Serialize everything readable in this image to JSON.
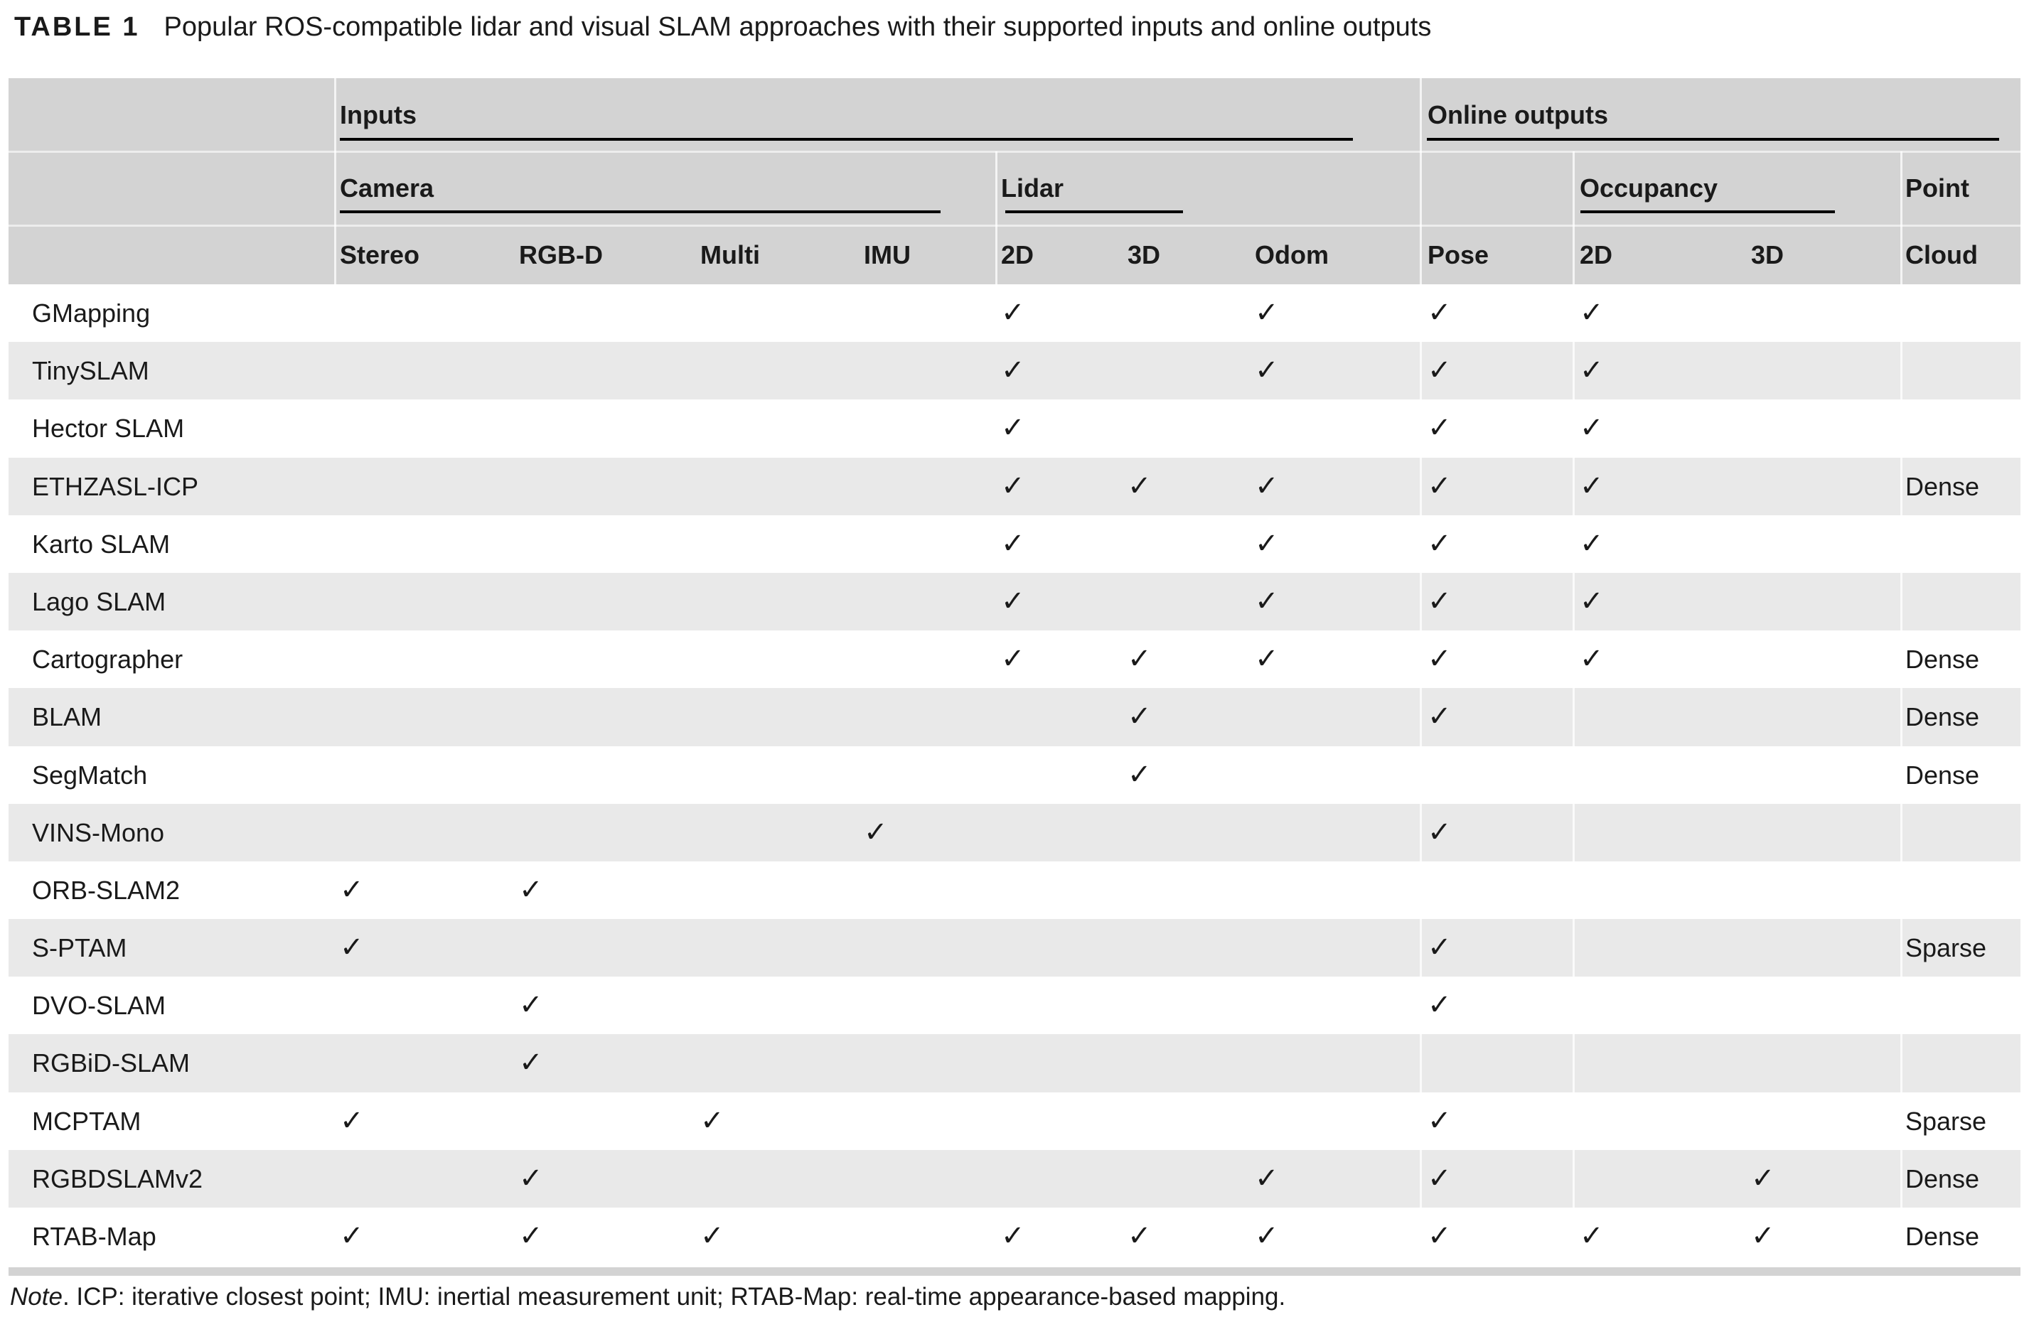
{
  "title": {
    "label": "TABLE 1",
    "text": "Popular ROS-compatible lidar and visual SLAM approaches with their supported inputs and online outputs"
  },
  "theme": {
    "header_bg": "#d3d3d3",
    "stripe_bg": "#e9e9e9",
    "text_color": "#1a1a1a",
    "rule_color": "#000000"
  },
  "check_glyph": "✓",
  "header": {
    "groups": {
      "inputs": "Inputs",
      "online_outputs": "Online outputs",
      "camera": "Camera",
      "lidar": "Lidar",
      "occupancy": "Occupancy",
      "point": "Point"
    },
    "columns": {
      "stereo": "Stereo",
      "rgbd": "RGB-D",
      "multi": "Multi",
      "imu": "IMU",
      "l2d": "2D",
      "l3d": "3D",
      "odom": "Odom",
      "pose": "Pose",
      "o2d": "2D",
      "o3d": "3D",
      "cloud": "Cloud"
    }
  },
  "rows": [
    {
      "name": "GMapping",
      "checks": [
        "l2d",
        "odom",
        "pose",
        "o2d"
      ],
      "cloud": ""
    },
    {
      "name": "TinySLAM",
      "checks": [
        "l2d",
        "odom",
        "pose",
        "o2d"
      ],
      "cloud": ""
    },
    {
      "name": "Hector SLAM",
      "checks": [
        "l2d",
        "pose",
        "o2d"
      ],
      "cloud": ""
    },
    {
      "name": "ETHZASL-ICP",
      "checks": [
        "l2d",
        "l3d",
        "odom",
        "pose",
        "o2d"
      ],
      "cloud": "Dense"
    },
    {
      "name": "Karto SLAM",
      "checks": [
        "l2d",
        "odom",
        "pose",
        "o2d"
      ],
      "cloud": ""
    },
    {
      "name": "Lago SLAM",
      "checks": [
        "l2d",
        "odom",
        "pose",
        "o2d"
      ],
      "cloud": ""
    },
    {
      "name": "Cartographer",
      "checks": [
        "l2d",
        "l3d",
        "odom",
        "pose",
        "o2d"
      ],
      "cloud": "Dense"
    },
    {
      "name": "BLAM",
      "checks": [
        "l3d",
        "pose"
      ],
      "cloud": "Dense"
    },
    {
      "name": "SegMatch",
      "checks": [
        "l3d"
      ],
      "cloud": "Dense"
    },
    {
      "name": "VINS-Mono",
      "checks": [
        "imu",
        "pose"
      ],
      "cloud": ""
    },
    {
      "name": "ORB-SLAM2",
      "checks": [
        "stereo",
        "rgbd"
      ],
      "cloud": ""
    },
    {
      "name": "S-PTAM",
      "checks": [
        "stereo",
        "pose"
      ],
      "cloud": "Sparse"
    },
    {
      "name": "DVO-SLAM",
      "checks": [
        "rgbd",
        "pose"
      ],
      "cloud": ""
    },
    {
      "name": "RGBiD-SLAM",
      "checks": [
        "rgbd"
      ],
      "cloud": ""
    },
    {
      "name": "MCPTAM",
      "checks": [
        "stereo",
        "multi",
        "pose"
      ],
      "cloud": "Sparse"
    },
    {
      "name": "RGBDSLAMv2",
      "checks": [
        "rgbd",
        "odom",
        "pose",
        "o3d"
      ],
      "cloud": "Dense"
    },
    {
      "name": "RTAB-Map",
      "checks": [
        "stereo",
        "rgbd",
        "multi",
        "l2d",
        "l3d",
        "odom",
        "pose",
        "o2d",
        "o3d"
      ],
      "cloud": "Dense"
    }
  ],
  "note": {
    "prefix": "Note",
    "text": ". ICP: iterative closest point; IMU: inertial measurement unit; RTAB-Map: real-time appearance-based mapping."
  }
}
